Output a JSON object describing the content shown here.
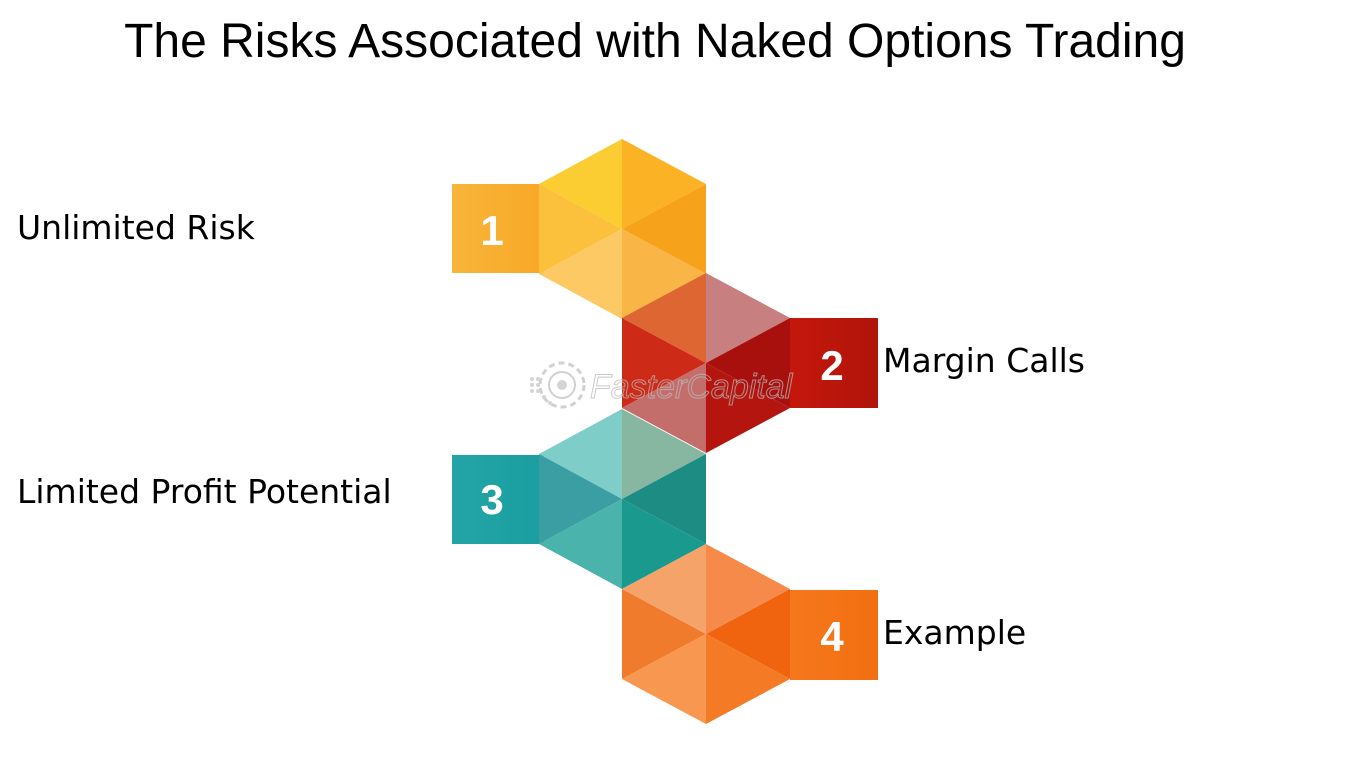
{
  "title": "The Risks Associated with Naked Options Trading",
  "steps": [
    {
      "number": "1",
      "label": "Unlimited Risk",
      "color": "#f7b22b"
    },
    {
      "number": "2",
      "label": "Margin Calls",
      "color": "#c0180f"
    },
    {
      "number": "3",
      "label": "Limited Profit Potential",
      "color": "#1d9fa3"
    },
    {
      "number": "4",
      "label": "Example",
      "color": "#f4741c"
    }
  ],
  "watermark": {
    "text": "FasterCapital",
    "icon": "gear-icon"
  }
}
